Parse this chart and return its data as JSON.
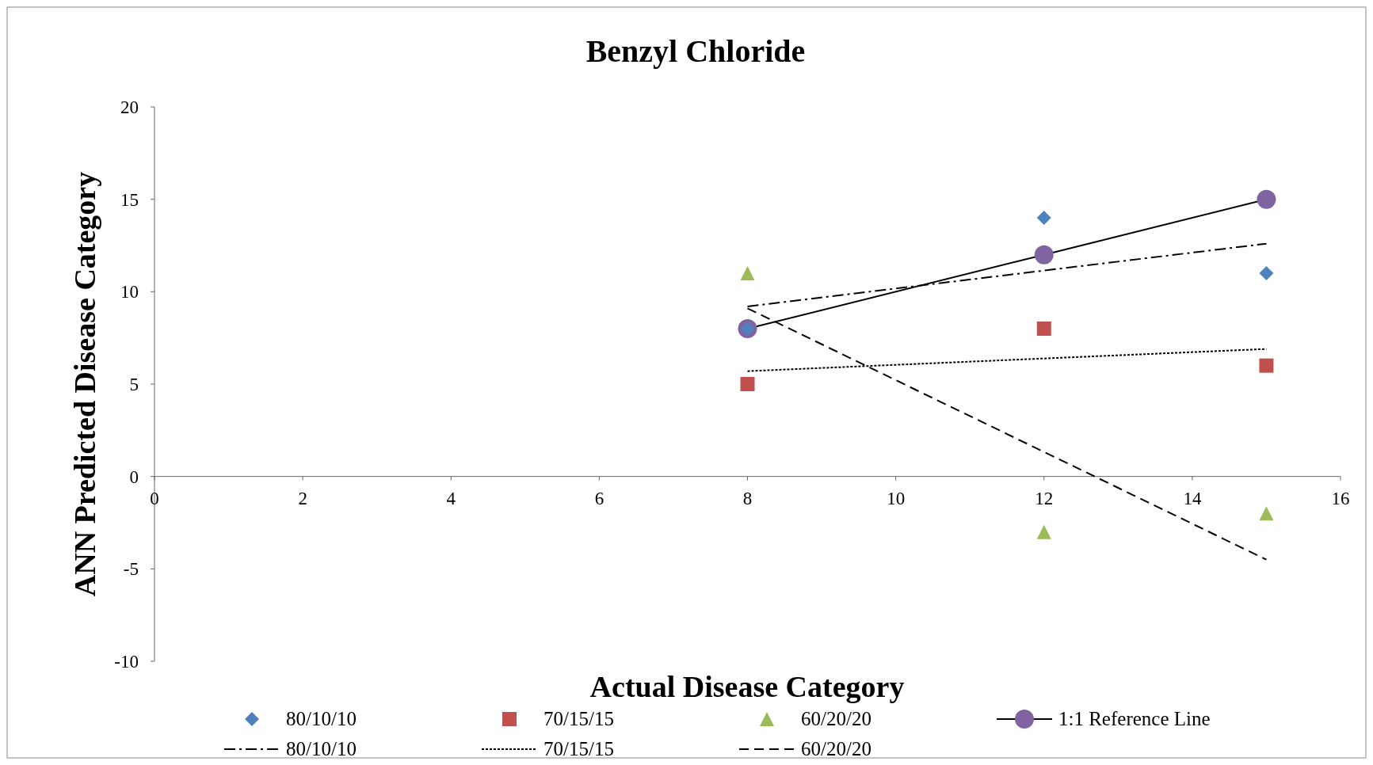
{
  "chart_data": {
    "type": "scatter",
    "title": "Benzyl Chloride",
    "xlabel": "Actual Disease Category",
    "ylabel": "ANN Predicted Disease Category",
    "xlim": [
      0,
      16
    ],
    "xticks": [
      0,
      2,
      4,
      6,
      8,
      10,
      12,
      14,
      16
    ],
    "ylim": [
      -10,
      20
    ],
    "yticks": [
      -10,
      -5,
      0,
      5,
      10,
      15,
      20
    ],
    "grid": false,
    "legend": "bottom",
    "series": [
      {
        "name": "80/10/10",
        "marker": "diamond",
        "color": "#4f81bd",
        "x": [
          8,
          12,
          15
        ],
        "values": [
          8,
          14,
          11
        ]
      },
      {
        "name": "70/15/15",
        "marker": "square",
        "color": "#c0504d",
        "x": [
          8,
          12,
          15
        ],
        "values": [
          5,
          8,
          6
        ]
      },
      {
        "name": "60/20/20",
        "marker": "triangle",
        "color": "#9bbb59",
        "x": [
          8,
          12,
          15
        ],
        "values": [
          11,
          -3,
          -2
        ]
      },
      {
        "name": "1:1 Reference Line",
        "type": "line",
        "marker": "circle",
        "line_style": "solid",
        "color": "#8064a2",
        "x": [
          8,
          12,
          15
        ],
        "values": [
          8,
          12,
          15
        ]
      },
      {
        "name": "80/10/10",
        "type": "line",
        "marker": "none",
        "line_style": "dashdot",
        "color": "#000000",
        "x": [
          8,
          15
        ],
        "values": [
          9.2,
          12.6
        ]
      },
      {
        "name": "70/15/15",
        "type": "line",
        "marker": "none",
        "line_style": "dotted",
        "color": "#000000",
        "x": [
          8,
          15
        ],
        "values": [
          5.7,
          6.9
        ]
      },
      {
        "name": "60/20/20",
        "type": "line",
        "marker": "none",
        "line_style": "dashed",
        "color": "#000000",
        "x": [
          8,
          15
        ],
        "values": [
          9.1,
          -4.5
        ]
      }
    ]
  }
}
